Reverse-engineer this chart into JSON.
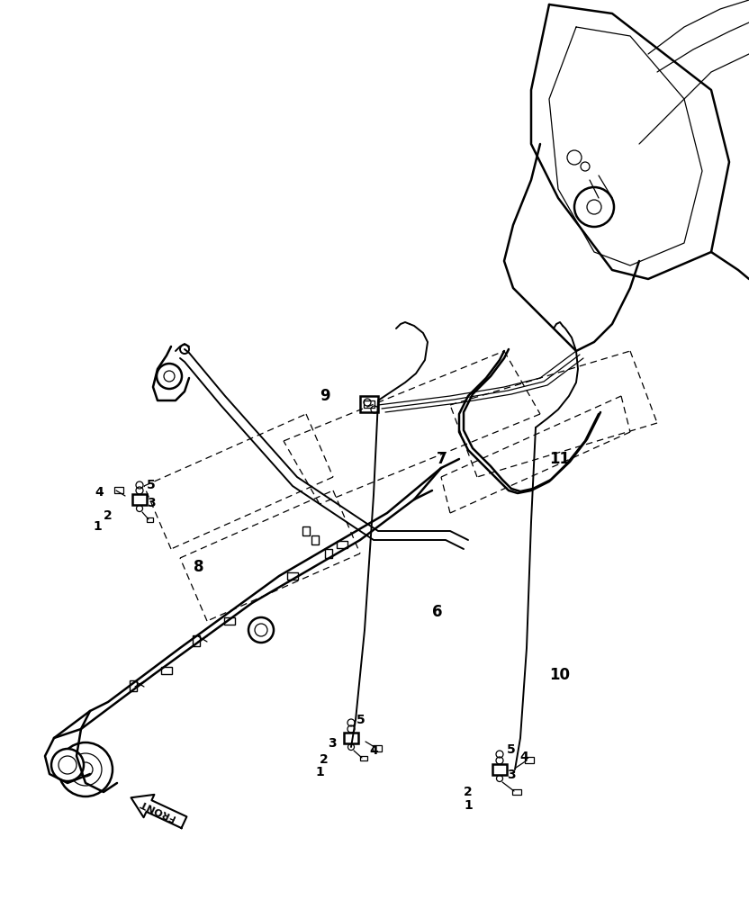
{
  "background_color": "#ffffff",
  "line_color": "#000000",
  "fig_width": 8.32,
  "fig_height": 10.0,
  "label_fs": 10,
  "lw_main": 1.4,
  "lw_thin": 0.9,
  "lw_dash": 0.8
}
